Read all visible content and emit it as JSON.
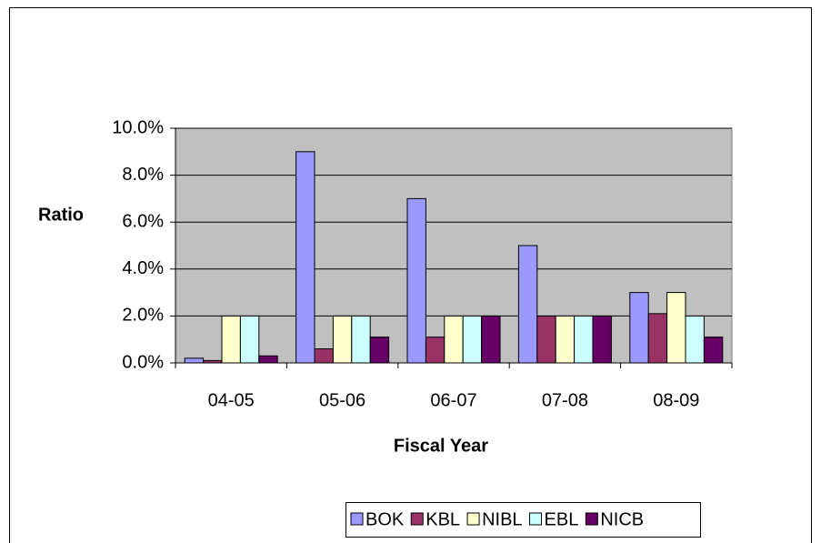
{
  "chart_data": {
    "type": "bar",
    "x_label": "Fiscal Year",
    "y_label": "Ratio",
    "categories": [
      "04-05",
      "05-06",
      "06-07",
      "07-08",
      "08-09"
    ],
    "series": [
      {
        "name": "BOK",
        "color": "#9999ff",
        "values": [
          0.2,
          9.0,
          7.0,
          5.0,
          3.0
        ]
      },
      {
        "name": "KBL",
        "color": "#993366",
        "values": [
          0.1,
          0.6,
          1.1,
          2.0,
          2.1
        ]
      },
      {
        "name": "NIBL",
        "color": "#ffffcc",
        "values": [
          2.0,
          2.0,
          2.0,
          2.0,
          3.0
        ]
      },
      {
        "name": "EBL",
        "color": "#ccffff",
        "values": [
          2.0,
          2.0,
          2.0,
          2.0,
          2.0
        ]
      },
      {
        "name": "NICB",
        "color": "#660066",
        "values": [
          0.3,
          1.1,
          2.0,
          2.0,
          1.1
        ]
      }
    ],
    "ylim": [
      0,
      10
    ],
    "yticks": [
      {
        "value": 0,
        "label": "0.0%"
      },
      {
        "value": 2,
        "label": "2.0%"
      },
      {
        "value": 4,
        "label": "4.0%"
      },
      {
        "value": 6,
        "label": "6.0%"
      },
      {
        "value": 8,
        "label": "8.0%"
      },
      {
        "value": 10,
        "label": "10.0%"
      }
    ],
    "grid": true,
    "plot_background": "#c0c0c0",
    "legend": "bottom"
  }
}
